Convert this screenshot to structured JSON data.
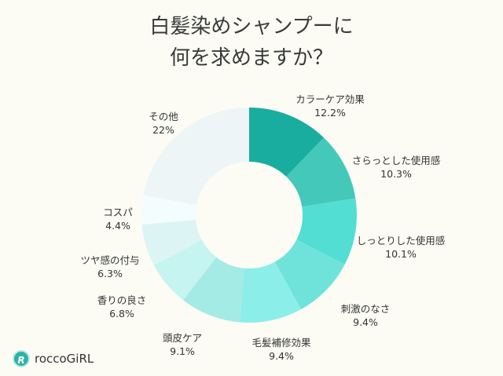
{
  "chart_data": {
    "type": "pie",
    "donut": true,
    "title": [
      "白髪染めシャンプーに",
      "何を求めますか？"
    ],
    "categories": [
      "カラーケア効果",
      "さらっとした使用感",
      "しっとりした使用感",
      "刺激のなさ",
      "毛髪補修効果",
      "頭皮ケア",
      "香りの良さ",
      "ツヤ感の付与",
      "コスパ",
      "その他"
    ],
    "values": [
      12.2,
      10.3,
      10.1,
      9.4,
      9.4,
      9.1,
      6.8,
      6.3,
      4.4,
      22
    ],
    "value_labels": [
      "12.2%",
      "10.3%",
      "10.1%",
      "9.4%",
      "9.4%",
      "9.1%",
      "6.8%",
      "6.3%",
      "4.4%",
      "22%"
    ],
    "colors": [
      "#19ad9f",
      "#44c8ba",
      "#52ded3",
      "#6fe3da",
      "#8beee8",
      "#a4ebe5",
      "#c6f4f0",
      "#dcf5f4",
      "#f3fdfd",
      "#edf5f6"
    ],
    "legend": "labels outside slices"
  },
  "brand": {
    "name": "roccoGiRL",
    "mark": "R"
  }
}
